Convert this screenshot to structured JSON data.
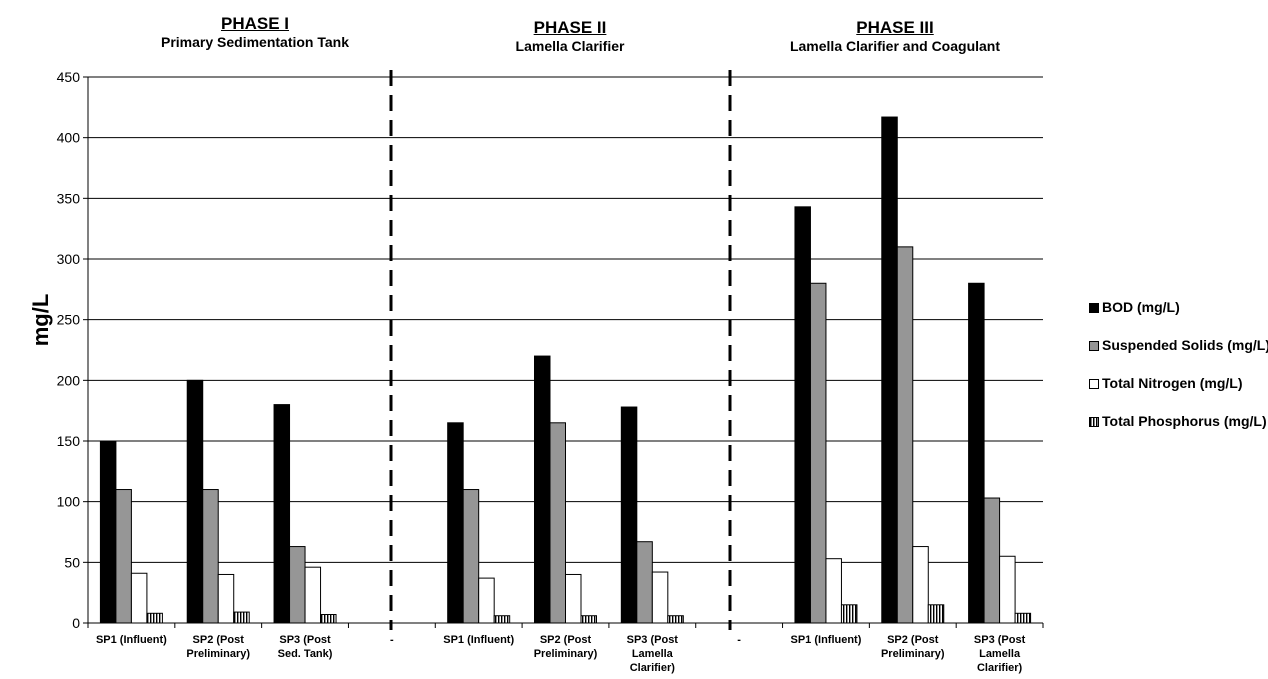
{
  "phases": [
    {
      "title": "PHASE I",
      "subtitle": "Primary Sedimentation Tank"
    },
    {
      "title": "PHASE II",
      "subtitle": "Lamella Clarifier"
    },
    {
      "title": "PHASE III",
      "subtitle": "Lamella Clarifier and Coagulant"
    }
  ],
  "chart_data": {
    "type": "bar",
    "ylabel": "mg/L",
    "ylim": [
      0,
      450
    ],
    "yticks": [
      0,
      50,
      100,
      150,
      200,
      250,
      300,
      350,
      400,
      450
    ],
    "grid": true,
    "legend_position": "right",
    "categories": [
      "SP1 (Influent)",
      "SP2 (Post Preliminary)",
      "SP3 (Post Sed. Tank)",
      "",
      "SP1 (Influent)",
      "SP2 (Post Preliminary)",
      "SP3 (Post Lamella Clarifier)",
      "",
      "SP1 (Influent)",
      "SP2 (Post Preliminary)",
      "SP3 (Post Lamella Clarifier)"
    ],
    "category_label_lines": [
      [
        "SP1 (Influent)"
      ],
      [
        "SP2 (Post",
        "Preliminary)"
      ],
      [
        "SP3 (Post",
        "Sed. Tank)"
      ],
      [
        "-"
      ],
      [
        "SP1 (Influent)"
      ],
      [
        "SP2 (Post",
        "Preliminary)"
      ],
      [
        "SP3 (Post",
        "Lamella",
        "Clarifier)"
      ],
      [
        "-"
      ],
      [
        "SP1 (Influent)"
      ],
      [
        "SP2 (Post",
        "Preliminary)"
      ],
      [
        "SP3 (Post",
        "Lamella",
        "Clarifier)"
      ]
    ],
    "series": [
      {
        "name": "BOD (mg/L)",
        "color": "#000000",
        "pattern": "solid",
        "values": [
          150,
          200,
          180,
          null,
          165,
          220,
          178,
          null,
          343,
          417,
          280
        ]
      },
      {
        "name": "Suspended Solids (mg/L)",
        "color": "#969696",
        "pattern": "solid",
        "values": [
          110,
          110,
          63,
          null,
          110,
          165,
          67,
          null,
          280,
          310,
          103
        ]
      },
      {
        "name": "Total Nitrogen (mg/L)",
        "color": "#ffffff",
        "pattern": "solid",
        "values": [
          41,
          40,
          46,
          null,
          37,
          40,
          42,
          null,
          53,
          63,
          55
        ]
      },
      {
        "name": "Total Phosphorus (mg/L)",
        "color": "#ffffff",
        "pattern": "vertical-stripes",
        "values": [
          8,
          9,
          7,
          null,
          6,
          6,
          6,
          null,
          15,
          15,
          8
        ]
      }
    ]
  }
}
